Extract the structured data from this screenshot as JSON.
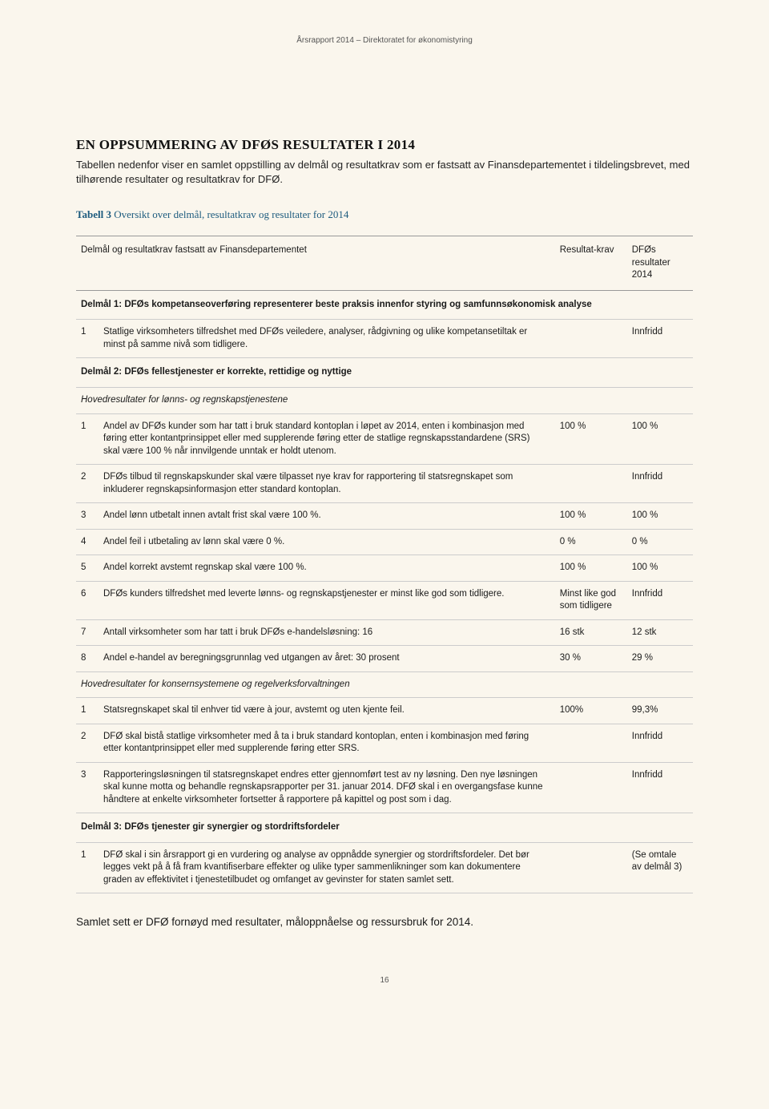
{
  "header": "Årsrapport 2014 – Direktoratet for økonomistyring",
  "heading": "EN OPPSUMMERING AV DFØS RESULTATER I 2014",
  "intro": "Tabellen nedenfor viser en samlet oppstilling av delmål og resultatkrav som er fastsatt av Finansdepartementet i tildelingsbrevet, med tilhørende resultater og resultatkrav for DFØ.",
  "table_title_bold": "Tabell 3",
  "table_title_rest": " Oversikt over delmål, resultatkrav og resultater for 2014",
  "th1": "Delmål og resultatkrav fastsatt av Finansdepartementet",
  "th2": "Resultat-krav",
  "th3": "DFØs resultater 2014",
  "sec1": "Delmål 1: DFØs kompetanseoverføring representerer beste praksis innenfor styring og samfunnsøkonomisk analyse",
  "r1_1_num": "1",
  "r1_1_desc": "Statlige virksomheters tilfredshet med DFØs veiledere, analyser, rådgivning og ulike kompetansetiltak er minst på samme nivå som tidligere.",
  "r1_1_res2": "Innfridd",
  "sec2": "Delmål 2: DFØs fellestjenester er korrekte, rettidige og nyttige",
  "sub2a": "Hovedresultater for lønns- og regnskapstjenestene",
  "r2a_1_num": "1",
  "r2a_1_desc": "Andel av DFØs kunder som har tatt i bruk standard kontoplan i løpet av 2014, enten i kombinasjon med føring etter kontantprinsippet eller med supplerende føring etter de statlige regnskapsstandardene (SRS) skal være 100 % når innvilgende unntak er holdt utenom.",
  "r2a_1_res1": "100 %",
  "r2a_1_res2": "100 %",
  "r2a_2_num": "2",
  "r2a_2_desc": "DFØs tilbud til regnskapskunder skal være tilpasset nye krav for rapportering til statsregnskapet som inkluderer regnskapsinformasjon etter standard kontoplan.",
  "r2a_2_res2": "Innfridd",
  "r2a_3_num": "3",
  "r2a_3_desc": "Andel lønn utbetalt innen avtalt frist skal være 100 %.",
  "r2a_3_res1": "100 %",
  "r2a_3_res2": "100 %",
  "r2a_4_num": "4",
  "r2a_4_desc": "Andel feil i utbetaling av lønn skal være 0 %.",
  "r2a_4_res1": "0 %",
  "r2a_4_res2": "0 %",
  "r2a_5_num": "5",
  "r2a_5_desc": "Andel korrekt avstemt regnskap skal være 100 %.",
  "r2a_5_res1": "100 %",
  "r2a_5_res2": "100 %",
  "r2a_6_num": "6",
  "r2a_6_desc": "DFØs kunders tilfredshet med leverte lønns- og regnskapstjenester er minst like god som tidligere.",
  "r2a_6_res1": "Minst like god som tidligere",
  "r2a_6_res2": "Innfridd",
  "r2a_7_num": "7",
  "r2a_7_desc": "Antall virksomheter som har tatt i bruk DFØs e-handelsløsning: 16",
  "r2a_7_res1": "16 stk",
  "r2a_7_res2": "12 stk",
  "r2a_8_num": "8",
  "r2a_8_desc": "Andel e-handel av beregningsgrunnlag ved utgangen av året: 30 prosent",
  "r2a_8_res1": "30 %",
  "r2a_8_res2": "29 %",
  "sub2b": "Hovedresultater for konsernsystemene og regelverksforvaltningen",
  "r2b_1_num": "1",
  "r2b_1_desc": "Statsregnskapet skal til enhver tid være à jour, avstemt og uten kjente feil.",
  "r2b_1_res1": "100%",
  "r2b_1_res2": "99,3%",
  "r2b_2_num": "2",
  "r2b_2_desc": "DFØ skal bistå statlige virksomheter med å ta i bruk standard kontoplan, enten i kombinasjon med føring etter kontantprinsippet eller med supplerende føring etter SRS.",
  "r2b_2_res2": "Innfridd",
  "r2b_3_num": "3",
  "r2b_3_desc": "Rapporteringsløsningen til statsregnskapet endres etter gjennomført test av ny løsning. Den nye løsningen skal kunne motta og behandle regnskapsrapporter per 31. januar 2014. DFØ skal i en overgangsfase kunne håndtere at enkelte virksomheter fortsetter å rapportere på kapittel og post som i dag.",
  "r2b_3_res2": "Innfridd",
  "sec3": "Delmål 3: DFØs tjenester gir synergier og stordriftsfordeler",
  "r3_1_num": "1",
  "r3_1_desc": "DFØ skal i sin årsrapport gi en vurdering og analyse av oppnådde synergier og stordriftsfordeler. Det bør legges vekt på å få fram kvantifiserbare effekter og ulike typer sammenlikninger som kan dokumentere graden av effektivitet i tjenestetilbudet og omfanget av gevinster for staten samlet sett.",
  "r3_1_res2": "(Se omtale av delmål 3)",
  "closing": "Samlet sett er DFØ fornøyd med resultater, måloppnåelse og ressursbruk for 2014.",
  "page_num": "16"
}
